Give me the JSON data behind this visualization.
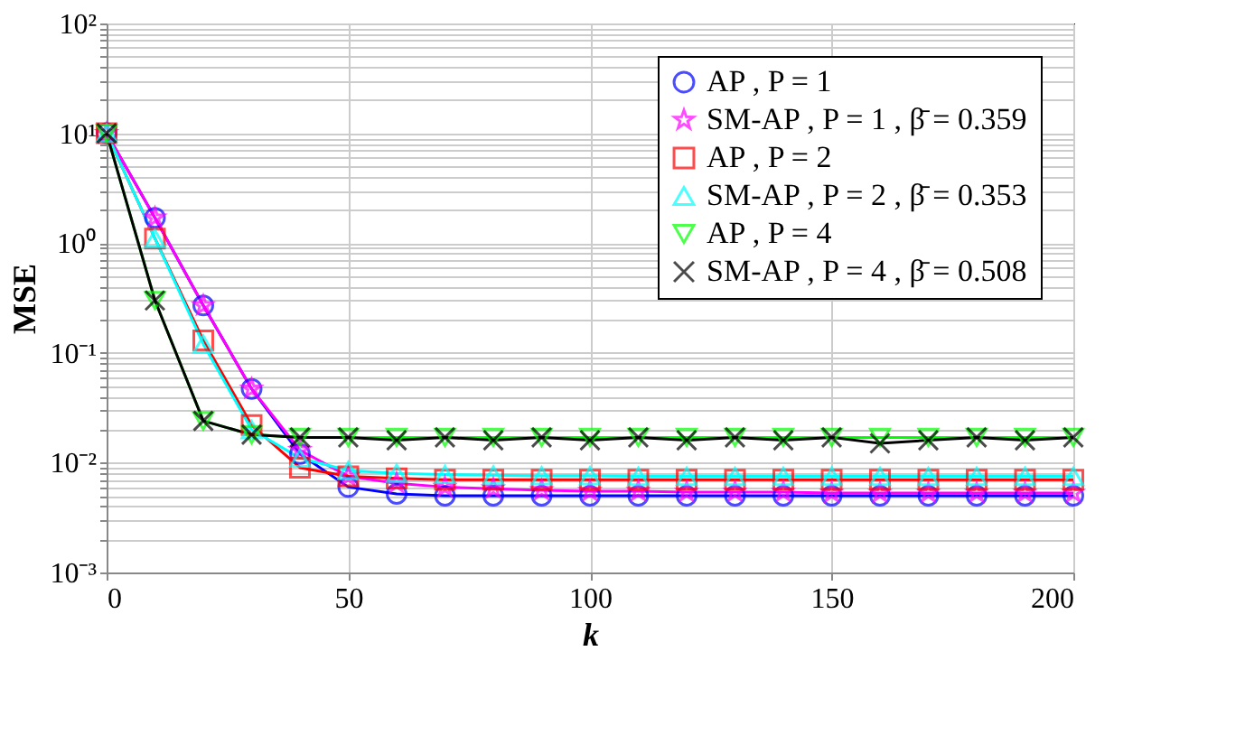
{
  "chart_data": {
    "type": "line",
    "xlabel": "k",
    "ylabel": "MSE",
    "x": [
      0,
      10,
      20,
      30,
      40,
      50,
      60,
      70,
      80,
      90,
      100,
      110,
      120,
      130,
      140,
      150,
      160,
      170,
      180,
      190,
      200
    ],
    "series": [
      {
        "name": "AP , P = 1",
        "color": "#0000ff",
        "marker": "circle",
        "values": [
          10,
          1.7,
          0.27,
          0.047,
          0.012,
          0.006,
          0.0052,
          0.005,
          0.005,
          0.005,
          0.005,
          0.005,
          0.005,
          0.005,
          0.005,
          0.005,
          0.005,
          0.005,
          0.005,
          0.005,
          0.005
        ]
      },
      {
        "name": "SM-AP , P = 1 , β̄ = 0.359",
        "color": "#ff00ff",
        "marker": "star",
        "values": [
          10,
          1.7,
          0.27,
          0.047,
          0.013,
          0.0075,
          0.0065,
          0.006,
          0.0058,
          0.0056,
          0.0055,
          0.0055,
          0.0054,
          0.0054,
          0.0054,
          0.0053,
          0.0053,
          0.0053,
          0.0053,
          0.0053,
          0.0053
        ]
      },
      {
        "name": "AP , P = 2",
        "color": "#ff0000",
        "marker": "square",
        "values": [
          10,
          1.1,
          0.13,
          0.022,
          0.009,
          0.0075,
          0.0072,
          0.007,
          0.007,
          0.007,
          0.007,
          0.007,
          0.007,
          0.007,
          0.007,
          0.007,
          0.007,
          0.007,
          0.007,
          0.007,
          0.007
        ]
      },
      {
        "name": "SM-AP , P = 2 , β̄ = 0.353",
        "color": "#00ffff",
        "marker": "triangle",
        "values": [
          10,
          1.1,
          0.12,
          0.02,
          0.011,
          0.0085,
          0.008,
          0.0078,
          0.0077,
          0.0076,
          0.0076,
          0.0075,
          0.0075,
          0.0075,
          0.0075,
          0.0075,
          0.0075,
          0.0075,
          0.0075,
          0.0075,
          0.0075
        ]
      },
      {
        "name": "AP , P = 4",
        "color": "#00ff00",
        "marker": "triangle_down",
        "values": [
          10,
          0.3,
          0.024,
          0.018,
          0.017,
          0.017,
          0.017,
          0.017,
          0.017,
          0.017,
          0.017,
          0.017,
          0.017,
          0.017,
          0.017,
          0.017,
          0.017,
          0.017,
          0.017,
          0.017,
          0.017
        ]
      },
      {
        "name": "SM-AP , P = 4 , β̄ = 0.508",
        "color": "#000000",
        "marker": "cross",
        "values": [
          10,
          0.3,
          0.024,
          0.018,
          0.017,
          0.017,
          0.016,
          0.017,
          0.016,
          0.017,
          0.016,
          0.017,
          0.016,
          0.017,
          0.016,
          0.017,
          0.015,
          0.016,
          0.017,
          0.016,
          0.017
        ]
      }
    ],
    "xlim": [
      0,
      200
    ],
    "xticks": [
      0,
      50,
      100,
      150,
      200
    ],
    "ylim": [
      0.001,
      100
    ],
    "yticks": [
      {
        "value": 0.001,
        "label": "10⁻³"
      },
      {
        "value": 0.01,
        "label": "10⁻²"
      },
      {
        "value": 0.1,
        "label": "10⁻¹"
      },
      {
        "value": 1,
        "label": "10⁰"
      },
      {
        "value": 10,
        "label": "10¹"
      },
      {
        "value": 100,
        "label": "10²"
      }
    ],
    "log": "y",
    "grid": true,
    "legend": "top right",
    "line_style": "solid"
  }
}
